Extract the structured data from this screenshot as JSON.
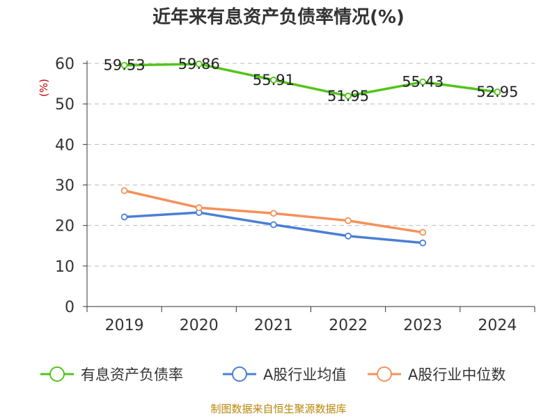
{
  "chart_data": {
    "type": "line",
    "title": "近年来有息资产负债率情况(%)",
    "ylabel": "(%)",
    "categories": [
      "2019",
      "2020",
      "2021",
      "2022",
      "2023",
      "2024"
    ],
    "ylim": [
      0,
      60
    ],
    "yticks": [
      0,
      10,
      20,
      30,
      40,
      50,
      60
    ],
    "grid": true,
    "legend_position": "bottom",
    "series": [
      {
        "name": "有息资产负债率",
        "color": "#52c41a",
        "values": [
          59.53,
          59.86,
          55.91,
          51.95,
          55.43,
          52.95
        ],
        "show_labels": true
      },
      {
        "name": "A股行业均值",
        "color": "#4a7fd6",
        "values": [
          22.1,
          23.2,
          20.2,
          17.4,
          15.7,
          null
        ],
        "show_labels": false
      },
      {
        "name": "A股行业中位数",
        "color": "#f4915a",
        "values": [
          28.6,
          24.4,
          23.0,
          21.2,
          18.3,
          null
        ],
        "show_labels": false
      }
    ]
  },
  "source": "制图数据来自恒生聚源数据库"
}
